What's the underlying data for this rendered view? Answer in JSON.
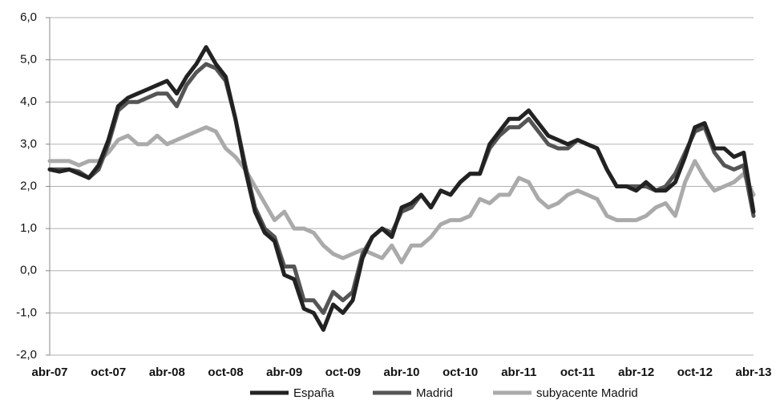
{
  "chart_data": {
    "type": "line",
    "categories": [
      "abr-07",
      null,
      null,
      null,
      null,
      null,
      "oct-07",
      null,
      null,
      null,
      null,
      null,
      "abr-08",
      null,
      null,
      null,
      null,
      null,
      "oct-08",
      null,
      null,
      null,
      null,
      null,
      "abr-09",
      null,
      null,
      null,
      null,
      null,
      "oct-09",
      null,
      null,
      null,
      null,
      null,
      "abr-10",
      null,
      null,
      null,
      null,
      null,
      "oct-10",
      null,
      null,
      null,
      null,
      null,
      "abr-11",
      null,
      null,
      null,
      null,
      null,
      "oct-11",
      null,
      null,
      null,
      null,
      null,
      "abr-12",
      null,
      null,
      null,
      null,
      null,
      "oct-12",
      null,
      null,
      null,
      null,
      null,
      "abr-13"
    ],
    "series": [
      {
        "name": "España",
        "color": "#222222",
        "values": [
          2.4,
          2.35,
          2.4,
          2.3,
          2.2,
          2.5,
          3.1,
          3.9,
          4.1,
          4.2,
          4.3,
          4.4,
          4.5,
          4.2,
          4.6,
          4.9,
          5.3,
          4.9,
          4.6,
          3.6,
          2.4,
          1.4,
          0.9,
          0.7,
          -0.1,
          -0.2,
          -0.9,
          -1.0,
          -1.4,
          -0.8,
          -1.0,
          -0.7,
          0.3,
          0.8,
          1.0,
          0.8,
          1.5,
          1.6,
          1.8,
          1.5,
          1.9,
          1.8,
          2.1,
          2.3,
          2.3,
          3.0,
          3.3,
          3.6,
          3.6,
          3.8,
          3.5,
          3.2,
          3.1,
          3.0,
          3.1,
          3.0,
          2.9,
          2.4,
          2.0,
          2.0,
          1.9,
          2.1,
          1.9,
          1.9,
          2.1,
          2.7,
          3.4,
          3.5,
          2.9,
          2.9,
          2.7,
          2.8,
          1.4
        ]
      },
      {
        "name": "Madrid",
        "color": "#555555",
        "values": [
          2.4,
          2.4,
          2.4,
          2.35,
          2.2,
          2.4,
          3.0,
          3.8,
          4.0,
          4.0,
          4.1,
          4.2,
          4.2,
          3.9,
          4.4,
          4.7,
          4.9,
          4.8,
          4.5,
          3.6,
          2.5,
          1.5,
          1.0,
          0.8,
          0.1,
          0.1,
          -0.7,
          -0.7,
          -1.0,
          -0.5,
          -0.7,
          -0.5,
          0.4,
          0.8,
          1.0,
          0.9,
          1.4,
          1.5,
          1.8,
          1.5,
          1.9,
          1.8,
          2.1,
          2.3,
          2.3,
          2.9,
          3.2,
          3.4,
          3.4,
          3.6,
          3.3,
          3.0,
          2.9,
          2.9,
          3.1,
          3.0,
          2.9,
          2.4,
          2.0,
          2.0,
          2.0,
          2.0,
          1.9,
          2.0,
          2.3,
          2.8,
          3.3,
          3.4,
          2.8,
          2.5,
          2.4,
          2.5,
          1.3
        ]
      },
      {
        "name": "subyacente Madrid",
        "color": "#aaaaaa",
        "values": [
          2.6,
          2.6,
          2.6,
          2.5,
          2.6,
          2.6,
          2.8,
          3.1,
          3.2,
          3.0,
          3.0,
          3.2,
          3.0,
          3.1,
          3.2,
          3.3,
          3.4,
          3.3,
          2.9,
          2.7,
          2.4,
          2.0,
          1.6,
          1.2,
          1.4,
          1.0,
          1.0,
          0.9,
          0.6,
          0.4,
          0.3,
          0.4,
          0.5,
          0.4,
          0.3,
          0.6,
          0.2,
          0.6,
          0.6,
          0.8,
          1.1,
          1.2,
          1.2,
          1.3,
          1.7,
          1.6,
          1.8,
          1.8,
          2.2,
          2.1,
          1.7,
          1.5,
          1.6,
          1.8,
          1.9,
          1.8,
          1.7,
          1.3,
          1.2,
          1.2,
          1.2,
          1.3,
          1.5,
          1.6,
          1.3,
          2.1,
          2.6,
          2.2,
          1.9,
          2.0,
          2.1,
          2.3,
          1.8
        ]
      }
    ],
    "ylim": [
      -2,
      6
    ],
    "yticks": [
      {
        "value": -2,
        "label": "-2,0"
      },
      {
        "value": -1,
        "label": "-1,0"
      },
      {
        "value": 0,
        "label": "0,0"
      },
      {
        "value": 1,
        "label": "1,0"
      },
      {
        "value": 2,
        "label": "2,0"
      },
      {
        "value": 3,
        "label": "3,0"
      },
      {
        "value": 4,
        "label": "4,0"
      },
      {
        "value": 5,
        "label": "5,0"
      },
      {
        "value": 6,
        "label": "6,0"
      }
    ],
    "grid": true,
    "legend": "bottom"
  }
}
